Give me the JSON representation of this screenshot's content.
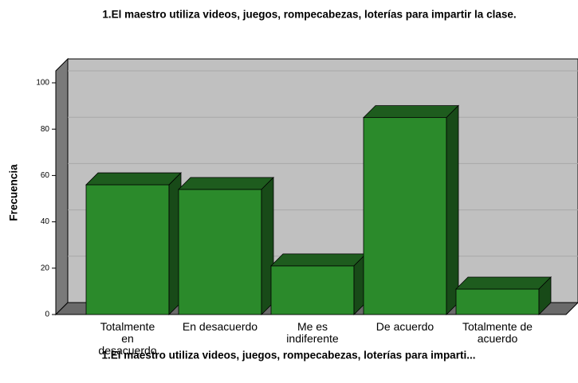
{
  "chart_data": {
    "type": "bar3d",
    "title": "1.El maestro utiliza videos, juegos, rompecabezas, loterías para impartir la clase.",
    "x_label": "1.El maestro utiliza videos, juegos, rompecabezas, loterías para imparti...",
    "y_label": "Frecuencia",
    "categories": [
      "Totalmente en desacuerdo",
      "En desacuerdo",
      "Me es indiferente",
      "De acuerdo",
      "Totalmente de acuerdo"
    ],
    "values": [
      56,
      54,
      21,
      85,
      11
    ],
    "color": "#2b8a2b",
    "ylim": [
      0,
      100
    ],
    "yticks": [
      0,
      20,
      40,
      60,
      80,
      100
    ],
    "grid": true
  }
}
